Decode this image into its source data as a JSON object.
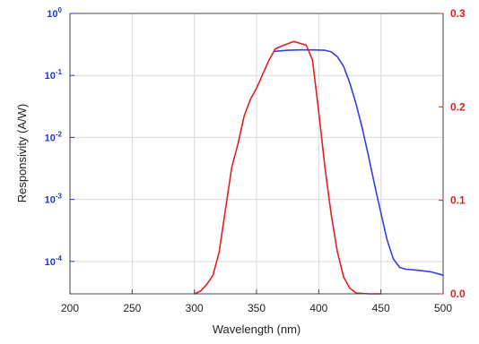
{
  "chart_data": {
    "type": "line",
    "title": "",
    "xlabel": "Wavelength (nm)",
    "ylabel": "Responsivity (A/W)",
    "xlim": [
      200,
      500
    ],
    "x_ticks": [
      200,
      250,
      300,
      350,
      400,
      450,
      500
    ],
    "ylim_left_log": [
      3e-05,
      1
    ],
    "left_scale": "log",
    "left_ticks": [
      {
        "value": 1,
        "base": "10",
        "exp": "0"
      },
      {
        "value": 0.1,
        "base": "10",
        "exp": "-1"
      },
      {
        "value": 0.01,
        "base": "10",
        "exp": "-2"
      },
      {
        "value": 0.001,
        "base": "10",
        "exp": "-3"
      },
      {
        "value": 0.0001,
        "base": "10",
        "exp": "-4"
      }
    ],
    "ylim_right": [
      0,
      0.3
    ],
    "right_ticks": [
      "0.0",
      "0.1",
      "0.2",
      "0.3"
    ],
    "left_axis_color": "#1f35d6",
    "right_axis_color": "#e02020",
    "grid": true,
    "series": [
      {
        "color": "#3a3ae8",
        "axis": "left",
        "points": [
          [
            365,
            0.245
          ],
          [
            375,
            0.255
          ],
          [
            385,
            0.258
          ],
          [
            395,
            0.258
          ],
          [
            405,
            0.255
          ],
          [
            410,
            0.24
          ],
          [
            415,
            0.2
          ],
          [
            420,
            0.14
          ],
          [
            425,
            0.075
          ],
          [
            430,
            0.035
          ],
          [
            435,
            0.014
          ],
          [
            440,
            0.005
          ],
          [
            445,
            0.0017
          ],
          [
            450,
            0.0006
          ],
          [
            455,
            0.00022
          ],
          [
            460,
            0.00011
          ],
          [
            465,
            8e-05
          ],
          [
            470,
            7.5e-05
          ],
          [
            480,
            7.2e-05
          ],
          [
            490,
            6.8e-05
          ],
          [
            500,
            6e-05
          ]
        ]
      },
      {
        "color": "#e02020",
        "axis": "right",
        "points": [
          [
            300,
            0.0
          ],
          [
            305,
            0.003
          ],
          [
            310,
            0.01
          ],
          [
            315,
            0.02
          ],
          [
            320,
            0.045
          ],
          [
            325,
            0.09
          ],
          [
            330,
            0.135
          ],
          [
            335,
            0.16
          ],
          [
            340,
            0.19
          ],
          [
            345,
            0.208
          ],
          [
            350,
            0.22
          ],
          [
            355,
            0.235
          ],
          [
            360,
            0.25
          ],
          [
            365,
            0.262
          ],
          [
            370,
            0.265
          ],
          [
            380,
            0.27
          ],
          [
            385,
            0.268
          ],
          [
            390,
            0.266
          ],
          [
            395,
            0.25
          ],
          [
            400,
            0.195
          ],
          [
            405,
            0.135
          ],
          [
            410,
            0.085
          ],
          [
            415,
            0.045
          ],
          [
            420,
            0.018
          ],
          [
            425,
            0.006
          ],
          [
            430,
            0.001
          ],
          [
            440,
            0.0
          ],
          [
            450,
            0.0
          ]
        ]
      }
    ]
  }
}
